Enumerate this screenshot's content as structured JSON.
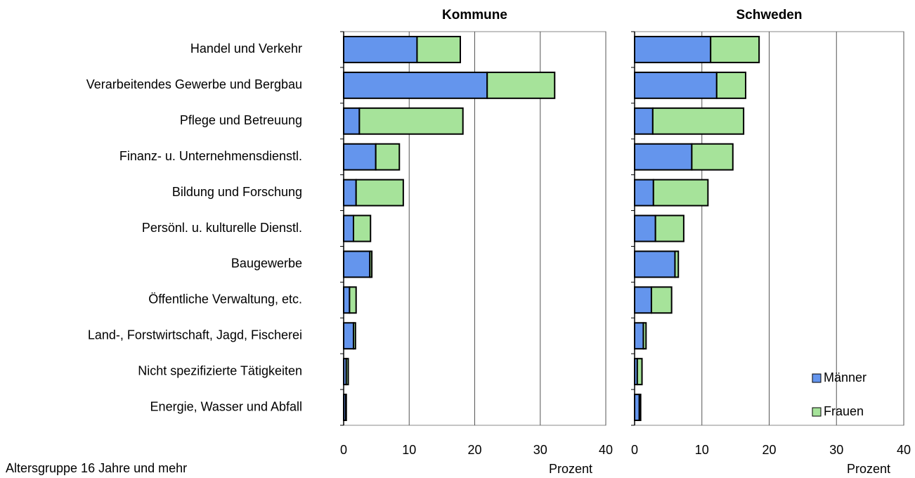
{
  "footnote": "Altersgruppe 16 Jahre und mehr",
  "chart_data": [
    {
      "type": "stacked-barh",
      "title": "Kommune",
      "xlabel": "Prozent",
      "categories": [
        "Handel und Verkehr",
        "Verarbeitendes Gewerbe und Bergbau",
        "Pflege und Betreuung",
        "Finanz- u. Unternehmensdienstl.",
        "Bildung und Forschung",
        "Persönl. u. kulturelle Dienstl.",
        "Baugewerbe",
        "Öffentliche Verwaltung, etc.",
        "Land-, Forstwirtschaft, Jagd, Fischerei",
        "Nicht spezifizierte Tätigkeiten",
        "Energie, Wasser und Abfall"
      ],
      "series": [
        {
          "color": "#6495ed",
          "values": [
            11.2,
            21.9,
            2.4,
            4.9,
            1.9,
            1.5,
            4.0,
            0.9,
            1.5,
            0.4,
            0.3
          ]
        },
        {
          "color": "#a6e39a",
          "values": [
            6.6,
            10.3,
            15.8,
            3.6,
            7.2,
            2.6,
            0.3,
            1.0,
            0.3,
            0.3,
            0.1
          ]
        }
      ],
      "xlim": [
        0,
        40
      ],
      "xticks": [
        0,
        10,
        20,
        30,
        40
      ],
      "grid": true
    },
    {
      "type": "stacked-barh",
      "title": "Schweden",
      "xlabel": "Prozent",
      "series": [
        {
          "name": "Männer",
          "color": "#6495ed",
          "values": [
            11.3,
            12.2,
            2.7,
            8.5,
            2.8,
            3.1,
            6.0,
            2.5,
            1.3,
            0.4,
            0.7
          ]
        },
        {
          "name": "Frauen",
          "color": "#a6e39a",
          "values": [
            7.2,
            4.3,
            13.5,
            6.1,
            8.1,
            4.2,
            0.5,
            3.0,
            0.4,
            0.7,
            0.2
          ]
        }
      ],
      "xlim": [
        0,
        40
      ],
      "xticks": [
        0,
        10,
        20,
        30,
        40
      ],
      "grid": true,
      "legend": "lower right"
    }
  ]
}
